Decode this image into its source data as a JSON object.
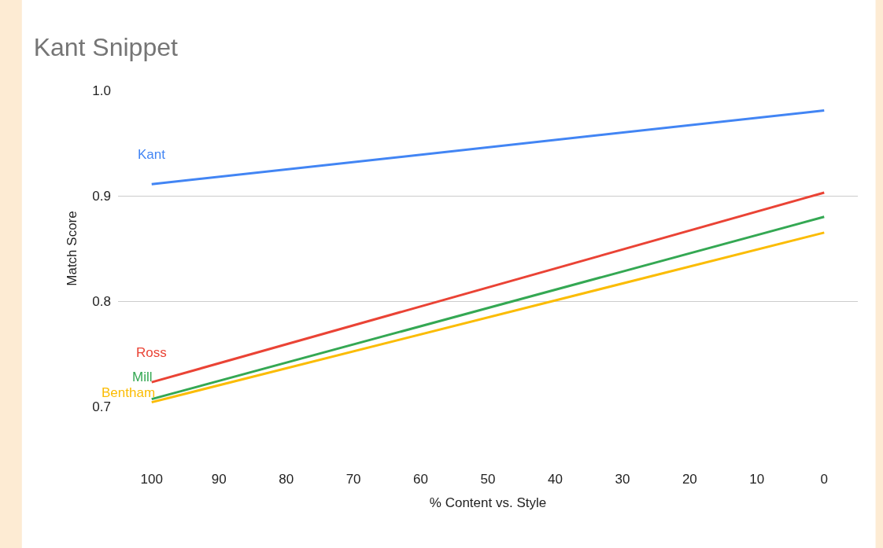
{
  "chart_data": {
    "type": "line",
    "title": "Kant Snippet",
    "xlabel": "% Content vs. Style",
    "ylabel": "Match Score",
    "x": [
      100,
      0
    ],
    "series": [
      {
        "name": "Kant",
        "color": "#4285f4",
        "values": [
          0.911,
          0.981
        ]
      },
      {
        "name": "Ross",
        "color": "#ea4335",
        "values": [
          0.723,
          0.903
        ]
      },
      {
        "name": "Mill",
        "color": "#34a853",
        "values": [
          0.707,
          0.88
        ]
      },
      {
        "name": "Bentham",
        "color": "#fbbc04",
        "values": [
          0.704,
          0.865
        ]
      }
    ],
    "xlim": [
      105,
      -5
    ],
    "xticks": [
      100,
      90,
      80,
      70,
      60,
      50,
      40,
      30,
      20,
      10,
      0
    ],
    "ylim": [
      0.7,
      1.0
    ],
    "yticks": [
      0.7,
      0.8,
      0.9,
      {
        "value": 1.0,
        "label": "1.0"
      }
    ],
    "grid": "y",
    "line_style": "solid"
  }
}
